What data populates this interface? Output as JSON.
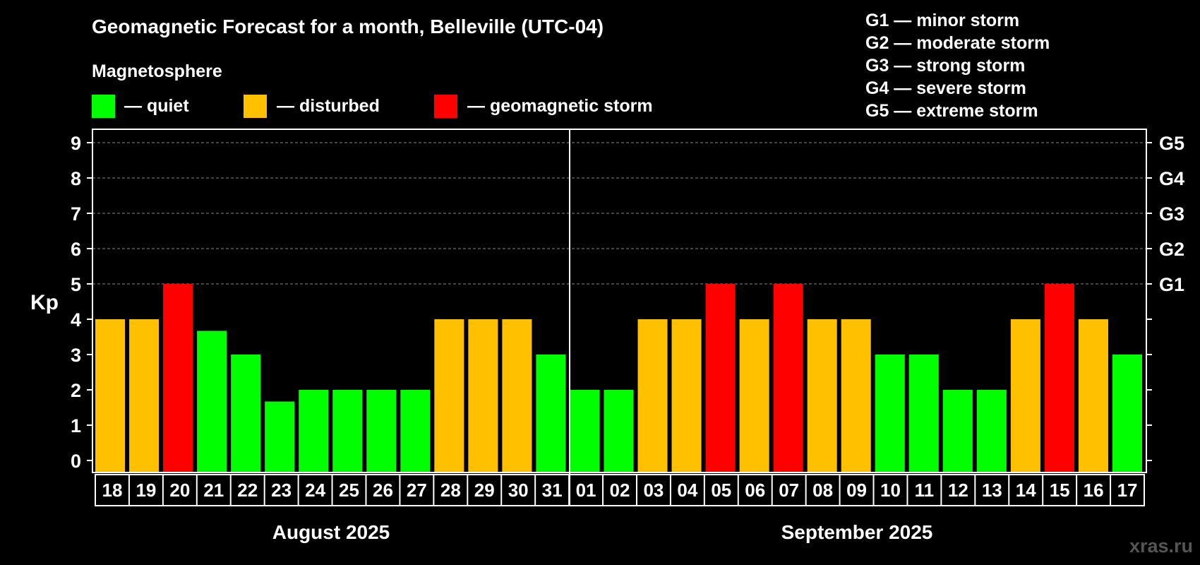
{
  "chart_data": {
    "type": "bar",
    "title": "Geomagnetic Forecast for a month, Belleville (UTC-04)",
    "legend_title": "Magnetosphere",
    "legend": [
      {
        "label": "— quiet",
        "color": "#00ff00"
      },
      {
        "label": "— disturbed",
        "color": "#ffc000"
      },
      {
        "label": "— geomagnetic storm",
        "color": "#ff0000"
      }
    ],
    "storm_levels": [
      "G1 — minor storm",
      "G2 — moderate storm",
      "G3 — strong storm",
      "G4 — severe storm",
      "G5 — extreme storm"
    ],
    "ylabel": "Kp",
    "ylim": [
      0,
      9
    ],
    "yticks": [
      "0",
      "1",
      "2",
      "3",
      "4",
      "5",
      "6",
      "7",
      "8",
      "9"
    ],
    "g_levels": [
      {
        "kp": 5,
        "label": "G1"
      },
      {
        "kp": 6,
        "label": "G2"
      },
      {
        "kp": 7,
        "label": "G3"
      },
      {
        "kp": 8,
        "label": "G4"
      },
      {
        "kp": 9,
        "label": "G5"
      }
    ],
    "categories": [
      "18",
      "19",
      "20",
      "21",
      "22",
      "23",
      "24",
      "25",
      "26",
      "27",
      "28",
      "29",
      "30",
      "31",
      "01",
      "02",
      "03",
      "04",
      "05",
      "06",
      "07",
      "08",
      "09",
      "10",
      "11",
      "12",
      "13",
      "14",
      "15",
      "16",
      "17"
    ],
    "values": [
      4,
      4,
      5,
      3.67,
      3,
      1.67,
      2,
      2,
      2,
      2,
      4,
      4,
      4,
      3,
      2,
      2,
      4,
      4,
      5,
      4,
      5,
      4,
      4,
      3,
      3,
      2,
      2,
      4,
      5,
      4,
      3
    ],
    "colors": {
      "quiet": "#00ff00",
      "disturbed": "#ffc000",
      "storm": "#ff0000"
    },
    "months": [
      {
        "label": "August 2025",
        "days": 14
      },
      {
        "label": "September 2025",
        "days": 17
      }
    ],
    "watermark": "xras.ru"
  }
}
